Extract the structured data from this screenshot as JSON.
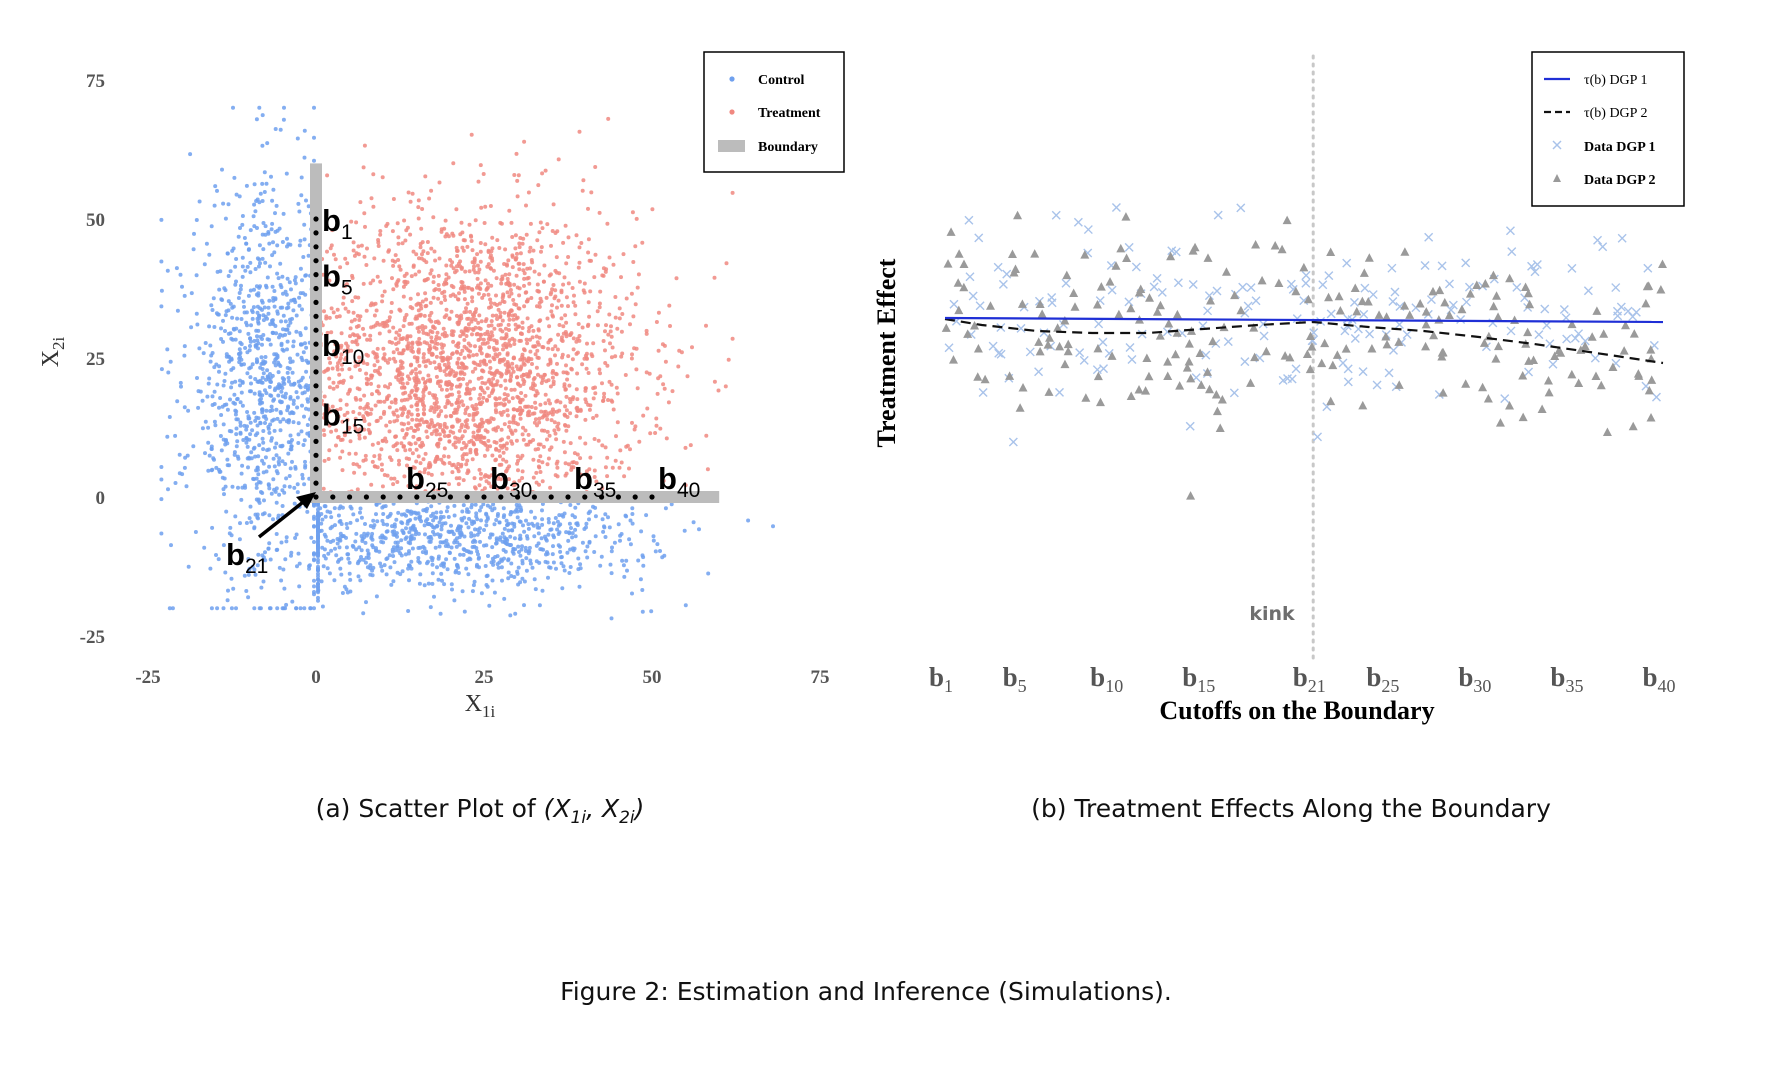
{
  "figure_caption": "Figure 2: Estimation and Inference (Simulations).",
  "panel_a": {
    "caption_prefix": "(a) Scatter Plot of ",
    "caption_math": "(X",
    "caption_sub1": "1i",
    "caption_mid": ", X",
    "caption_sub2": "2i",
    "caption_close": ")"
  },
  "panel_b": {
    "caption": "(b) Treatment Effects Along the Boundary"
  },
  "colors": {
    "control": "#6fa0ee",
    "treatment": "#f08880",
    "boundary": "#bcbcbc",
    "dgp1_line": "#1f2fd6",
    "dgp2_line": "#111111",
    "dgp1_points": "#a9c3ea",
    "dgp2_points": "#9a9a9a",
    "kink_line": "#c8c8c8"
  },
  "chart_data": [
    {
      "type": "scatter",
      "title": "",
      "xlabel": "X",
      "xlabel_sub": "1i",
      "ylabel": "X",
      "ylabel_sub": "2i",
      "xlim": [
        -25,
        75
      ],
      "ylim": [
        -25,
        75
      ],
      "xticks": [
        -25,
        0,
        25,
        50,
        75
      ],
      "yticks": [
        -25,
        0,
        25,
        50,
        75
      ],
      "grid": false,
      "legend_position": "top-right",
      "legend": [
        {
          "label": "Control",
          "symbol": "point"
        },
        {
          "label": "Treatment",
          "symbol": "point"
        },
        {
          "label": "Boundary",
          "symbol": "band"
        }
      ],
      "series": [
        {
          "name": "Control",
          "distribution": "points with X1 < 0 or X2 < 0",
          "approx_count": 2200
        },
        {
          "name": "Treatment",
          "distribution": "points with X1 >= 0 and X2 >= 0",
          "approx_count": 2600
        }
      ],
      "boundary": {
        "vertical": {
          "x": 0,
          "y_from": 0,
          "y_to": 60
        },
        "horizontal": {
          "y": 0,
          "x_from": 0,
          "x_to": 60
        }
      },
      "cutoff_labels": [
        {
          "base": "b",
          "sub": "1",
          "x": 0,
          "y": 50
        },
        {
          "base": "b",
          "sub": "5",
          "x": 0,
          "y": 40
        },
        {
          "base": "b",
          "sub": "10",
          "x": 0,
          "y": 27.5
        },
        {
          "base": "b",
          "sub": "15",
          "x": 0,
          "y": 15
        },
        {
          "base": "b",
          "sub": "21",
          "x": 0,
          "y": 0
        },
        {
          "base": "b",
          "sub": "25",
          "x": 12.5,
          "y": 0
        },
        {
          "base": "b",
          "sub": "30",
          "x": 25,
          "y": 0
        },
        {
          "base": "b",
          "sub": "35",
          "x": 37.5,
          "y": 0
        },
        {
          "base": "b",
          "sub": "40",
          "x": 50,
          "y": 0
        }
      ]
    },
    {
      "type": "line",
      "title": "",
      "xlabel": "Cutoffs on the Boundary",
      "ylabel": "Treatment Effect",
      "xlim": [
        1,
        40
      ],
      "x_tick_labels": [
        {
          "base": "b",
          "sub": "1",
          "index": 1
        },
        {
          "base": "b",
          "sub": "5",
          "index": 5
        },
        {
          "base": "b",
          "sub": "10",
          "index": 10
        },
        {
          "base": "b",
          "sub": "15",
          "index": 15
        },
        {
          "base": "b",
          "sub": "21",
          "index": 21
        },
        {
          "base": "b",
          "sub": "25",
          "index": 25
        },
        {
          "base": "b",
          "sub": "30",
          "index": 30
        },
        {
          "base": "b",
          "sub": "35",
          "index": 35
        },
        {
          "base": "b",
          "sub": "40",
          "index": 40
        }
      ],
      "kink": {
        "index": 21,
        "label": "kink"
      },
      "grid": false,
      "legend_position": "top-right",
      "legend": [
        {
          "label": "τ(b) DGP 1",
          "symbol": "solid"
        },
        {
          "label": "τ(b) DGP 2",
          "symbol": "dashed"
        },
        {
          "label": "Data DGP 1",
          "symbol": "cross"
        },
        {
          "label": "Data DGP 2",
          "symbol": "triangle"
        }
      ],
      "series": [
        {
          "name": "τ(b) DGP 1",
          "x": [
            1,
            40
          ],
          "y": [
            1.2,
            1.0
          ]
        },
        {
          "name": "τ(b) DGP 2",
          "x": [
            1,
            3,
            6,
            9,
            12,
            15,
            18,
            21,
            24,
            27,
            30,
            33,
            36,
            40
          ],
          "y": [
            1.15,
            0.85,
            0.55,
            0.45,
            0.45,
            0.65,
            0.85,
            1.0,
            0.75,
            0.55,
            0.25,
            -0.1,
            -0.5,
            -1.05
          ]
        }
      ],
      "data_points": {
        "Data DGP 1": "~190 cross markers scattered around DGP 1 curve",
        "Data DGP 2": "~220 triangle markers scattered around DGP 2 curve"
      }
    }
  ]
}
